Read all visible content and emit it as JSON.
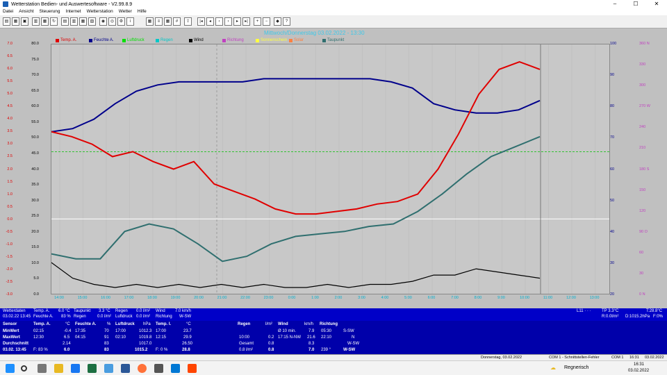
{
  "window": {
    "title": "Wetterstation Bedien- und Auswertesoftware - V2.99.8.9",
    "minimize": "–",
    "maximize": "☐",
    "close": "✕"
  },
  "menu": [
    "Datei",
    "Ansicht",
    "Steuerung",
    "Internet",
    "Wetterstation",
    "Wetter",
    "Hilfe"
  ],
  "chart": {
    "title": "Mittwoch/Donnerstag 03.02.2022 - 13:30",
    "legend": [
      {
        "label": "Temp. A.",
        "color": "#e00000"
      },
      {
        "label": "Feuchte A.",
        "color": "#00008b"
      },
      {
        "label": "Luftdruck",
        "color": "#00e000"
      },
      {
        "label": "Regen",
        "color": "#00c8c8"
      },
      {
        "label": "Wind",
        "color": "#000000"
      },
      {
        "label": "Richtung",
        "color": "#c040c0"
      },
      {
        "label": "Sonnenschein",
        "color": "#ffff40"
      },
      {
        "label": "Solar",
        "color": "#ff8040"
      },
      {
        "label": "Taupunkt",
        "color": "#2f6f6f"
      }
    ],
    "axis_units": {
      "temp": "°C",
      "hum": "%",
      "wind": "km/h",
      "rain": "l/m²",
      "dir": "°",
      "solar": "W/m²"
    },
    "left_temp_ticks": [
      "7.0",
      "6.5",
      "6.0",
      "5.5",
      "5.0",
      "4.5",
      "4.0",
      "3.5",
      "3.0",
      "2.5",
      "2.0",
      "1.5",
      "1.0",
      "0.5",
      "0.0",
      "-0.5",
      "-1.0",
      "-1.5",
      "-2.0",
      "-2.5",
      "-3.0"
    ],
    "left_wind_ticks": [
      "80.0",
      "75.0",
      "70.0",
      "65.0",
      "60.0",
      "55.0",
      "50.0",
      "45.0",
      "40.0",
      "35.0",
      "30.0",
      "25.0",
      "20.0",
      "15.0",
      "10.0",
      "5.0",
      "0.0"
    ],
    "right_hum_ticks": [
      "100",
      "90",
      "80",
      "70",
      "60",
      "50",
      "40",
      "30",
      "20"
    ],
    "right_dir_ticks": [
      "360 N",
      "330",
      "300",
      "270 W",
      "240",
      "210",
      "180 S",
      "150",
      "120",
      "90 O",
      "60",
      "30",
      "0 N"
    ],
    "x_ticks": [
      "14:00",
      "15:00",
      "16:00",
      "17:00",
      "18:00",
      "19:00",
      "20:00",
      "21:00",
      "22:00",
      "23:00",
      "0:00",
      "1:00",
      "2:00",
      "3:00",
      "4:00",
      "5:00",
      "6:00",
      "7:00",
      "8:00",
      "9:00",
      "10:00",
      "11:00",
      "12:00",
      "13:00"
    ]
  },
  "chart_data": {
    "type": "line",
    "x_unit": "time",
    "series": [
      {
        "name": "Temp. A.",
        "unit": "°C",
        "values": [
          3.5,
          3.3,
          3.0,
          2.5,
          2.7,
          2.3,
          2.0,
          2.3,
          1.4,
          1.1,
          0.8,
          0.4,
          0.2,
          0.2,
          0.3,
          0.4,
          0.6,
          0.7,
          1.0,
          2.0,
          3.4,
          5.0,
          6.0,
          6.3,
          6.0
        ]
      },
      {
        "name": "Feuchte A.",
        "unit": "%",
        "values": [
          72,
          73,
          76,
          81,
          85,
          87,
          88,
          88,
          88,
          88,
          89,
          89,
          89,
          89,
          89,
          89,
          88,
          86,
          81,
          79,
          78,
          78,
          79,
          82
        ]
      },
      {
        "name": "Taupunkt",
        "unit": "°C",
        "values": [
          -1.4,
          -1.6,
          -1.6,
          -0.5,
          -0.2,
          -0.4,
          -1.0,
          -1.7,
          -1.5,
          -1.0,
          -0.7,
          -0.6,
          -0.5,
          -0.3,
          -0.2,
          0.3,
          1.0,
          1.8,
          2.5,
          2.9,
          3.3
        ]
      },
      {
        "name": "Wind",
        "unit": "km/h",
        "values": [
          10,
          5,
          3,
          2,
          3,
          2,
          3,
          2,
          3,
          2,
          3,
          2,
          2,
          3,
          2,
          3,
          3,
          4,
          6,
          6,
          8,
          7,
          6,
          5
        ]
      }
    ]
  },
  "panel1": {
    "wetterdaten": "Wetterdaten",
    "wetterdaten_date": "03.02.22 13:45",
    "temp_a_label": "Temp. A.",
    "temp_a": "6.0 °C",
    "feuchte_a_label": "Feuchte A.",
    "feuchte_a": "83 %",
    "taupunkt_label": "Taupunkt",
    "taupunkt": "3.3 °C",
    "regen_label": "Regen",
    "regen": "0.0 l/m²",
    "regen2_label": "Regen",
    "regen2": "0.0 l/m²",
    "luftdruck_label": "Luftdruck",
    "luftdruck": "0.0 l/m²",
    "wind_label": "Wind",
    "wind": "7.0 km/h",
    "richtung_label": "Richtung",
    "richtung": "W-SW",
    "right1": "L11 · · ·",
    "right2": "TP 3.3°C",
    "right3": "T:28.8°C",
    "right4": "R:0.0l/m²",
    "right5": "D:1015.2hPa",
    "right6": "F:0%"
  },
  "panel2": {
    "sensor": "Sensor",
    "minwert": "MinWert",
    "maxwert": "MaxWert",
    "durchschnitt": "Durchschnitt",
    "date": "03.02. 13:45",
    "temp_h": "Temp. A.",
    "temp_u": "°C",
    "temp_min_t": "02:15",
    "temp_min": "-0.4",
    "temp_max_t": "12:30",
    "temp_max": "6.5",
    "temp_avg": "2.14",
    "temp_f": "F: 83 %",
    "temp_now": "6.0",
    "hum_h": "Feuchte A.",
    "hum_u": "%",
    "hum_min_t": "17:35",
    "hum_min": "70",
    "hum_max_t": "04:15",
    "hum_max": "91",
    "hum_avg": "83",
    "hum_now": "83",
    "press_h": "Luftdruck",
    "press_u": "hPa",
    "press_min_t": "17:00",
    "press_min": "1012.3",
    "press_max_t": "02:10",
    "press_max": "1019.8",
    "press_avg": "1017.0",
    "press_now": "1015.2",
    "tempi_h": "Temp. I.",
    "tempi_u": "°C",
    "tempi_min_t": "17:00",
    "tempi_min": "23.7",
    "tempi_max_t": "12:15",
    "tempi_max": "29.9",
    "tempi_avg": "26.50",
    "tempi_f": "F: 0 %",
    "tempi_now": "28.8",
    "rain_h": "Regen",
    "rain_u": "l/m²",
    "rain_r1_t": "10:00",
    "rain_r1": "0.2",
    "rain_r2_t": "Gesamt",
    "rain_r2": "0.8",
    "rain_r3_t": "0.8 l/m²",
    "rain_now": "0.8",
    "wind_h": "Wind",
    "wind_u": "km/h",
    "wind_r1_t": "Ø 10 min.",
    "wind_r1": "7.9",
    "wind_r2_t": "17:15  N-NW",
    "wind_r2": "21.6",
    "wind_avg": "8.3",
    "wind_now": "7.0",
    "dir_h": "Richtung",
    "dir_r1_t": "05:30",
    "dir_r1": "S-SW",
    "dir_r2_t": "22:10",
    "dir_r2": "N",
    "dir_r3": "W-SW",
    "dir_now_deg": "239 °",
    "dir_now": "W-SW"
  },
  "status": {
    "date": "Donnerstag, 03.02.2022",
    "com": "COM 1 - Schnittstellen-Fehler",
    "com1": "COM 1",
    "time": "16:31",
    "date2": "03.02.2022"
  },
  "taskbar": {
    "weather": "Regnerisch",
    "time": "16:31",
    "date": "03.02.2022"
  }
}
